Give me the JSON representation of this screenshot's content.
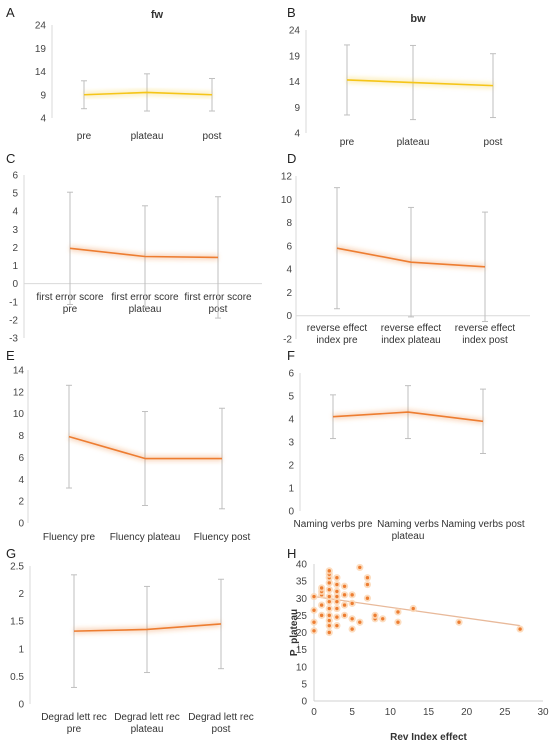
{
  "chart_data": [
    {
      "panel": "A",
      "type": "line",
      "title": "fw",
      "categories": [
        "pre",
        "plateau",
        "post"
      ],
      "ylim": [
        4,
        24
      ],
      "yticks": [
        4,
        9,
        14,
        19,
        24
      ],
      "series": [
        {
          "values": [
            9,
            9.5,
            9
          ],
          "errors": [
            3,
            4,
            3.5
          ],
          "color": "#f5c518"
        }
      ]
    },
    {
      "panel": "B",
      "type": "line",
      "title": "bw",
      "categories": [
        "pre",
        "plateau",
        "post"
      ],
      "ylim": [
        4,
        24
      ],
      "yticks": [
        4,
        9,
        14,
        19,
        24
      ],
      "series": [
        {
          "values": [
            14.3,
            13.8,
            13.2
          ],
          "errors": [
            6.8,
            7.2,
            6.2
          ],
          "color": "#f5c518"
        }
      ]
    },
    {
      "panel": "C",
      "type": "line",
      "categories": [
        [
          "first error score",
          "pre"
        ],
        [
          "first error score",
          "plateau"
        ],
        [
          "first error score",
          "post"
        ]
      ],
      "ylim": [
        -3,
        6
      ],
      "yticks": [
        -3,
        -2,
        -1,
        0,
        1,
        2,
        3,
        4,
        5,
        6
      ],
      "series": [
        {
          "values": [
            1.95,
            1.5,
            1.45
          ],
          "errors": [
            3.1,
            2.8,
            3.35
          ],
          "color": "#ed7d31"
        }
      ]
    },
    {
      "panel": "D",
      "type": "line",
      "categories": [
        [
          "reverse effect",
          "index pre"
        ],
        [
          "reverse effect",
          "index plateau"
        ],
        [
          "reverse effect",
          "index post"
        ]
      ],
      "ylim": [
        -2,
        12
      ],
      "yticks": [
        -2,
        0,
        2,
        4,
        6,
        8,
        10,
        12
      ],
      "series": [
        {
          "values": [
            5.8,
            4.6,
            4.2
          ],
          "errors": [
            5.2,
            4.7,
            4.7
          ],
          "color": "#ed7d31"
        }
      ]
    },
    {
      "panel": "E",
      "type": "line",
      "categories": [
        [
          "Fluency pre"
        ],
        [
          "Fluency plateau"
        ],
        [
          "Fluency post"
        ]
      ],
      "ylim": [
        0,
        14
      ],
      "yticks": [
        0,
        2,
        4,
        6,
        8,
        10,
        12,
        14
      ],
      "series": [
        {
          "values": [
            7.9,
            5.9,
            5.9
          ],
          "errors": [
            4.7,
            4.3,
            4.6
          ],
          "color": "#ed7d31"
        }
      ]
    },
    {
      "panel": "F",
      "type": "line",
      "categories": [
        [
          "Naming verbs pre"
        ],
        [
          "Naming verbs",
          "plateau"
        ],
        [
          "Naming verbs post"
        ]
      ],
      "ylim": [
        0,
        6
      ],
      "yticks": [
        0,
        1,
        2,
        3,
        4,
        5,
        6
      ],
      "series": [
        {
          "values": [
            4.1,
            4.3,
            3.9
          ],
          "errors": [
            0.95,
            1.15,
            1.4
          ],
          "color": "#ed7d31"
        }
      ]
    },
    {
      "panel": "G",
      "type": "line",
      "categories": [
        [
          "Degrad lett rec",
          "pre"
        ],
        [
          "Degrad lett rec",
          "plateau"
        ],
        [
          "Degrad lett rec",
          "post"
        ]
      ],
      "ylim": [
        0,
        2.5
      ],
      "yticks": [
        0,
        0.5,
        1,
        1.5,
        2,
        2.5
      ],
      "series": [
        {
          "values": [
            1.32,
            1.35,
            1.45
          ],
          "errors": [
            1.02,
            0.78,
            0.81
          ],
          "color": "#ed7d31"
        }
      ]
    },
    {
      "panel": "H",
      "type": "scatter",
      "xlabel": "Rev Index effect",
      "ylabel": "P_plateau",
      "xlim": [
        0,
        30
      ],
      "ylim": [
        0,
        40
      ],
      "xticks": [
        0,
        5,
        10,
        15,
        20,
        25,
        30
      ],
      "yticks": [
        0,
        5,
        10,
        15,
        20,
        25,
        30,
        35,
        40
      ],
      "trendline": [
        [
          0,
          30.5
        ],
        [
          27,
          22
        ]
      ],
      "points": [
        [
          0,
          20.5
        ],
        [
          0,
          23
        ],
        [
          0,
          26.5
        ],
        [
          0,
          30.5
        ],
        [
          1,
          25
        ],
        [
          1,
          28
        ],
        [
          1,
          31
        ],
        [
          1,
          32
        ],
        [
          1,
          33
        ],
        [
          2,
          20
        ],
        [
          2,
          22
        ],
        [
          2,
          23.5
        ],
        [
          2,
          25
        ],
        [
          2,
          27
        ],
        [
          2,
          29
        ],
        [
          2,
          30.5
        ],
        [
          2,
          32.5
        ],
        [
          2,
          34.5
        ],
        [
          2,
          36
        ],
        [
          2,
          37
        ],
        [
          2,
          38
        ],
        [
          3,
          22
        ],
        [
          3,
          24.5
        ],
        [
          3,
          27
        ],
        [
          3,
          29
        ],
        [
          3,
          30.5
        ],
        [
          3,
          32
        ],
        [
          3,
          34
        ],
        [
          3,
          36
        ],
        [
          4,
          25
        ],
        [
          4,
          28
        ],
        [
          4,
          31
        ],
        [
          4,
          33.5
        ],
        [
          5,
          21
        ],
        [
          5,
          24
        ],
        [
          5,
          28.5
        ],
        [
          5,
          31
        ],
        [
          6,
          23
        ],
        [
          6,
          39
        ],
        [
          7,
          30
        ],
        [
          7,
          34
        ],
        [
          7,
          36
        ],
        [
          8,
          24
        ],
        [
          8,
          25
        ],
        [
          9,
          24
        ],
        [
          11,
          23
        ],
        [
          11,
          26
        ],
        [
          13,
          27
        ],
        [
          19,
          23
        ],
        [
          27,
          21
        ]
      ]
    }
  ]
}
